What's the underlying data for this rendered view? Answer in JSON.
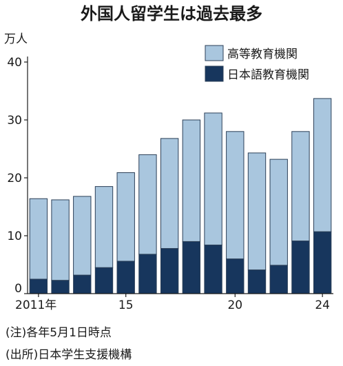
{
  "chart_data": {
    "type": "bar",
    "stacked": true,
    "title": "外国人留学生は過去最多",
    "unit": "万人",
    "categories": [
      "2011",
      "2012",
      "2013",
      "2014",
      "2015",
      "2016",
      "2017",
      "2018",
      "2019",
      "2020",
      "2021",
      "2022",
      "2023",
      "2024"
    ],
    "x_tick_labels": [
      {
        "category": "2011",
        "label": "2011年"
      },
      {
        "category": "2015",
        "label": "15"
      },
      {
        "category": "2020",
        "label": "20"
      },
      {
        "category": "2024",
        "label": "24"
      }
    ],
    "series": [
      {
        "name": "日本語教育機関",
        "color": "#17365d",
        "values": [
          2.5,
          2.3,
          3.2,
          4.5,
          5.6,
          6.8,
          7.8,
          9.0,
          8.4,
          6.0,
          4.1,
          4.9,
          9.1,
          10.7
        ]
      },
      {
        "name": "高等教育機関",
        "color": "#a9c6de",
        "values": [
          13.9,
          13.9,
          13.6,
          14.0,
          15.3,
          17.2,
          19.0,
          21.0,
          22.8,
          22.0,
          20.2,
          18.3,
          18.9,
          23.0
        ]
      }
    ],
    "ylim": [
      0,
      40
    ],
    "yticks": [
      0,
      10,
      20,
      30,
      40
    ],
    "grid": false,
    "legend_position": "top-right",
    "notes": [
      "(注)各年5月1日時点",
      "(出所)日本学生支援機構"
    ]
  }
}
